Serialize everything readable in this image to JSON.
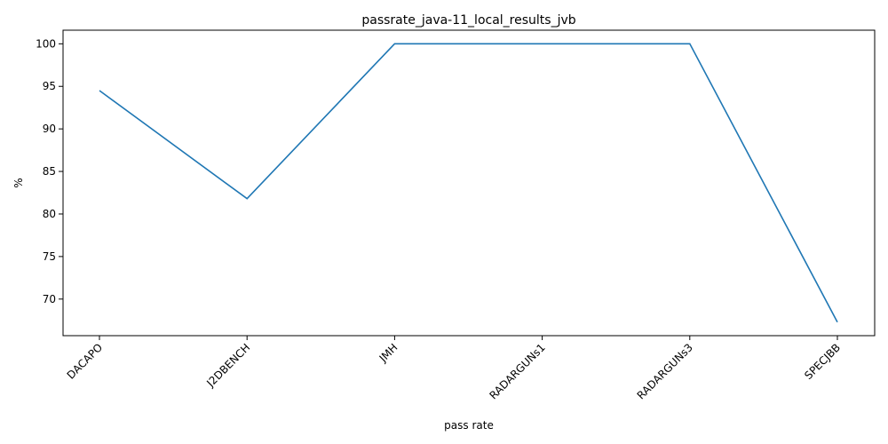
{
  "chart_data": {
    "type": "line",
    "title": "passrate_java-11_local_results_jvb",
    "xlabel": "pass rate",
    "ylabel": "%",
    "categories": [
      "DACAPO",
      "J2DBENCH",
      "JMH",
      "RADARGUNs1",
      "RADARGUNs3",
      "SPECJBB"
    ],
    "series": [
      {
        "values": [
          94.5,
          81.8,
          100,
          100,
          100,
          67.3
        ]
      }
    ],
    "ylim": [
      65.7,
      101.6
    ],
    "yticks": [
      70,
      75,
      80,
      85,
      90,
      95,
      100
    ],
    "grid": false,
    "line_color": "#1f77b4"
  }
}
